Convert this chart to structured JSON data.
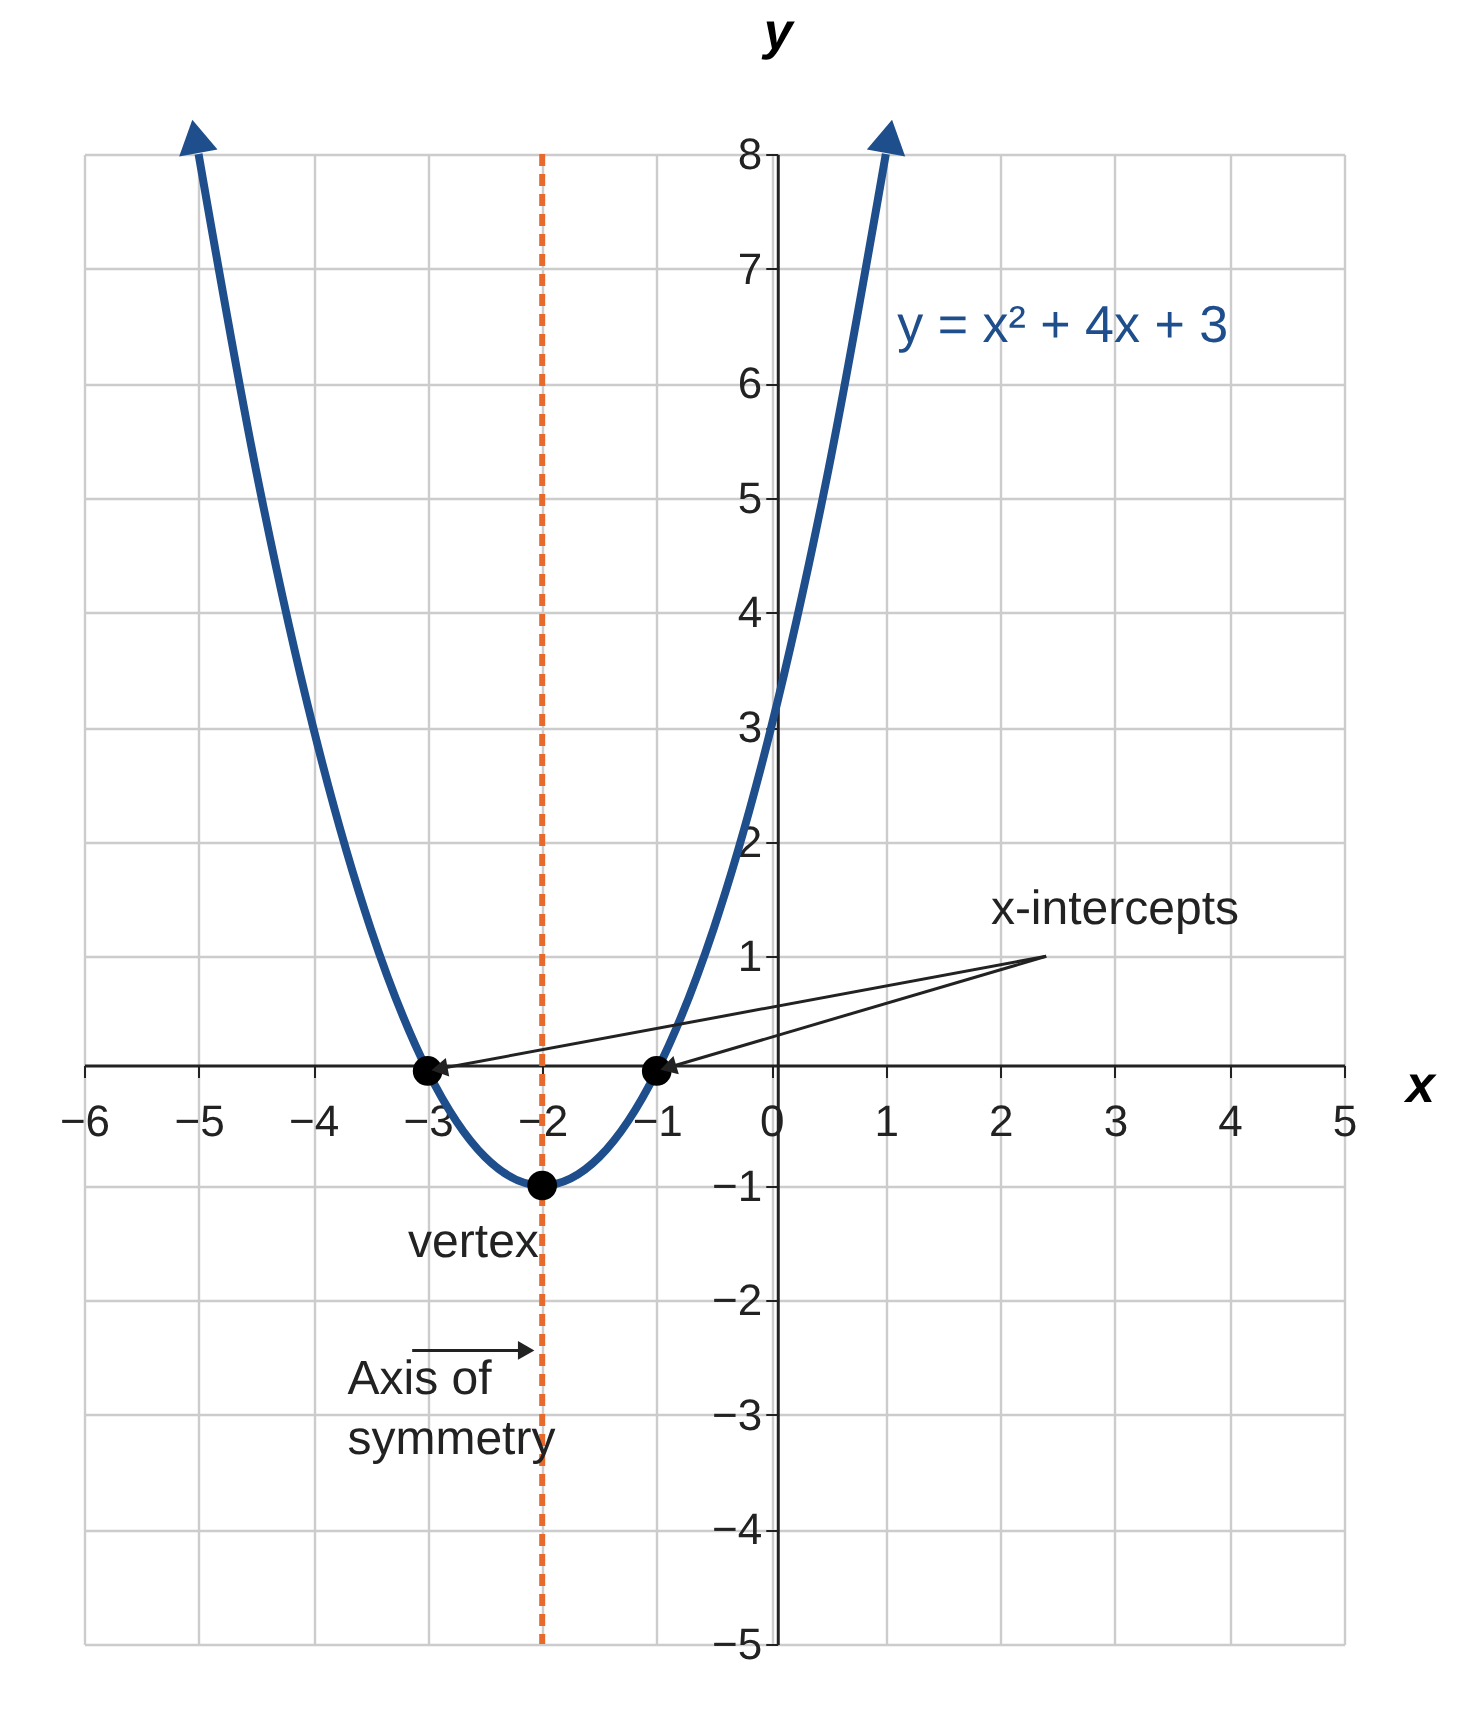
{
  "chart_data": {
    "type": "line",
    "xlabel": "x",
    "ylabel": "y",
    "xlim": [
      -6,
      5
    ],
    "ylim": [
      -5,
      8
    ],
    "xticks": [
      -6,
      -5,
      -4,
      -3,
      -2,
      -1,
      0,
      1,
      2,
      3,
      4,
      5
    ],
    "yticks": [
      -5,
      -4,
      -3,
      -2,
      -1,
      1,
      2,
      3,
      4,
      5,
      6,
      7,
      8
    ],
    "grid": true,
    "series": [
      {
        "color": "#1f4e8c",
        "x": [
          -5,
          -4.5,
          -4,
          -3.5,
          -3,
          -2.5,
          -2,
          -1.5,
          -1,
          -0.5,
          0,
          0.5,
          1
        ],
        "values": [
          8,
          5.25,
          3,
          1.25,
          0,
          -0.75,
          -1,
          -0.75,
          0,
          1.25,
          3,
          5.25,
          8
        ]
      },
      {
        "type": "scatter",
        "color": "#000000",
        "marker": "circle",
        "x": [
          -3,
          -1,
          -2
        ],
        "values": [
          0,
          0,
          -1
        ]
      }
    ],
    "ref_lines": [
      {
        "axis": "x",
        "value": -2,
        "color": "#e8692c",
        "line_style": "dashed"
      }
    ],
    "annotations": [
      "y = x² + 4x + 3",
      {
        "text": "x-intercepts",
        "x": -1,
        "y": 0
      },
      "vertex",
      "Axis of\nsymmetry"
    ]
  }
}
